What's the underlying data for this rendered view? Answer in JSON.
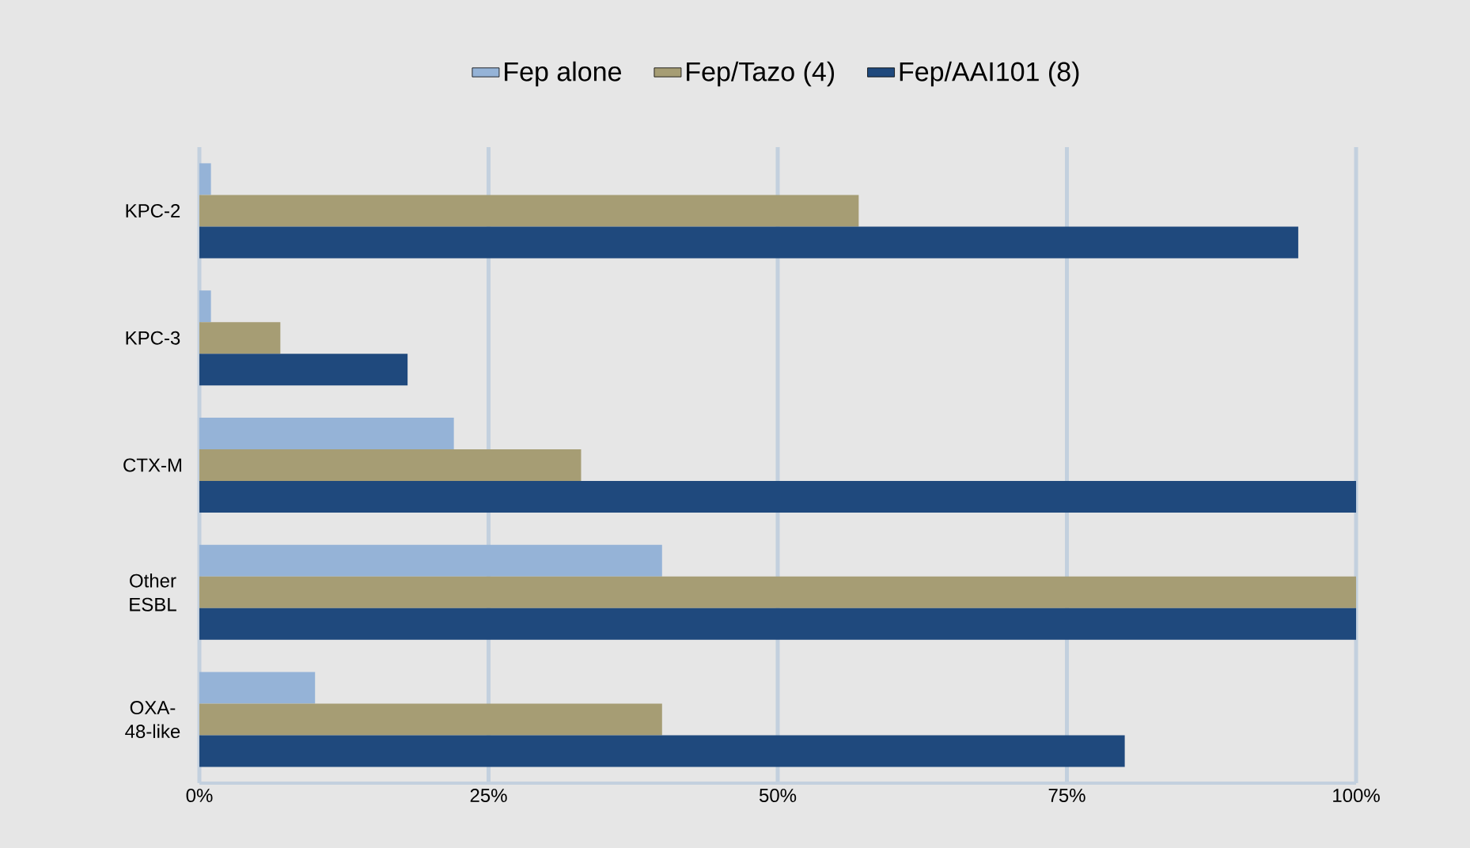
{
  "chart_data": {
    "type": "bar",
    "orientation": "horizontal",
    "categories": [
      "KPC-2",
      "KPC-3",
      "CTX-M",
      "Other ESBL",
      "OXA-48-like"
    ],
    "series": [
      {
        "name": "Fep alone",
        "color": "#95b3d7",
        "values": [
          1,
          1,
          22,
          40,
          10
        ]
      },
      {
        "name": "Fep/Tazo (4)",
        "color": "#a69d74",
        "values": [
          57,
          7,
          33,
          100,
          40
        ]
      },
      {
        "name": "Fep/AAI101 (8)",
        "color": "#1f497d",
        "values": [
          95,
          18,
          100,
          100,
          80
        ]
      }
    ],
    "xlim": [
      0,
      100
    ],
    "xticks": [
      {
        "value": 0,
        "label": "0%"
      },
      {
        "value": 25,
        "label": "25%"
      },
      {
        "value": 50,
        "label": "50%"
      },
      {
        "value": 75,
        "label": "75%"
      },
      {
        "value": 100,
        "label": "100%"
      }
    ],
    "grid": "x",
    "legend": "top"
  }
}
